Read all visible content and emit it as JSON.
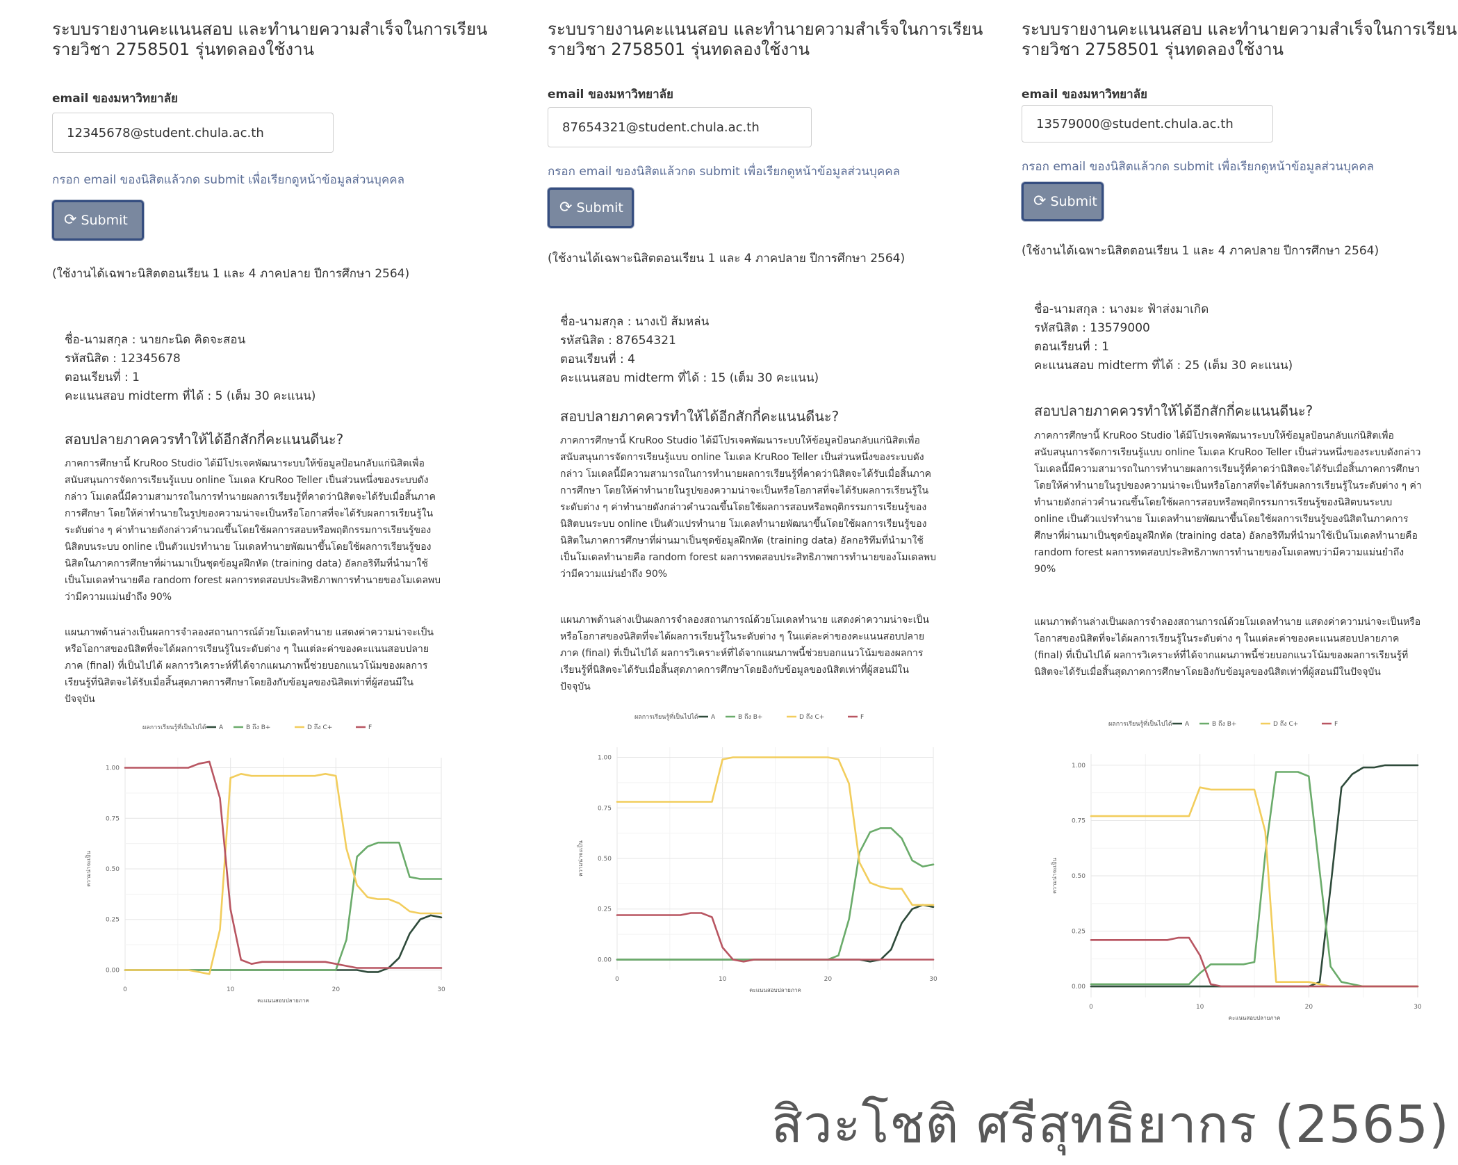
{
  "app_title_line1": "ระบบรายงานคะแนนสอบ และทำนายความสำเร็จในการเรียน",
  "app_title_line2": "รายวิชา 2758501 รุ่นทดลองใช้งาน",
  "email_label": "email ของมหาวิทยาลัย",
  "help_text": "กรอก email ของนิสิตแล้วกด submit เพื่อเรียกดูหน้าข้อมูลส่วนบุคคล",
  "submit_label": "Submit",
  "notice": "(ใช้งานได้เฉพาะนิสิตตอนเรียน 1 และ 4 ภาคปลาย ปีการศึกษา 2564)",
  "section_title": "สอบปลายภาคควรทำให้ได้อีกสักกี่คะแนนดีนะ?",
  "paragraph1": "ภาคการศึกษานี้ KruRoo Studio ได้มีโปรเจคพัฒนาระบบให้ข้อมูลป้อนกลับแก่นิสิตเพื่อสนับสนุนการจัดการเรียนรู้แบบ online โมเดล KruRoo Teller เป็นส่วนหนึ่งของระบบดังกล่าว โมเดลนี้มีความสามารถในการทำนายผลการเรียนรู้ที่คาดว่านิสิตจะได้รับเมื่อสิ้นภาคการศึกษา โดยให้ค่าทำนายในรูปของความน่าจะเป็นหรือโอกาสที่จะได้รับผลการเรียนรู้ในระดับต่าง ๆ ค่าทำนายดังกล่าวคำนวณขึ้นโดยใช้ผลการสอบหรือพฤติกรรมการเรียนรู้ของนิสิตบนระบบ online เป็นตัวแปรทำนาย โมเดลทำนายพัฒนาขึ้นโดยใช้ผลการเรียนรู้ของนิสิตในภาคการศึกษาที่ผ่านมาเป็นชุดข้อมูลฝึกหัด (training data) อัลกอริทึมที่นำมาใช้เป็นโมเดลทำนายคือ random forest ผลการทดสอบประสิทธิภาพการทำนายของโมเดลพบว่ามีความแม่นยำถึง 90%",
  "paragraph2": "แผนภาพด้านล่างเป็นผลการจำลองสถานการณ์ด้วยโมเดลทำนาย แสดงค่าความน่าจะเป็นหรือโอกาสของนิสิตที่จะได้ผลการเรียนรู้ในระดับต่าง ๆ ในแต่ละค่าของคะแนนสอบปลายภาค (final) ที่เป็นไปได้ ผลการวิเคราะห์ที่ได้จากแผนภาพนี้ช่วยบอกแนวโน้มของผลการเรียนรู้ที่นิสิตจะได้รับเมื่อสิ้นสุดภาคการศึกษาโดยอิงกับข้อมูลของนิสิตเท่าที่ผู้สอนมีในปัจจุบัน",
  "labels": {
    "name": "ชื่อ-นามสกุล : ",
    "id": "รหัสนิสิต : ",
    "section": "ตอนเรียนที่ : ",
    "midterm_prefix": "คะแนนสอบ midterm ที่ได้ : ",
    "midterm_suffix": " (เต็ม 30 คะแนน)"
  },
  "panels": [
    {
      "email": "12345678@student.chula.ac.th",
      "name": "นายกะนิด คิดจะสอน",
      "student_id": "12345678",
      "section": "1",
      "midterm": "5"
    },
    {
      "email": "87654321@student.chula.ac.th",
      "name": "นางเป้ ส้มหล่น",
      "student_id": "87654321",
      "section": "4",
      "midterm": "15"
    },
    {
      "email": "13579000@student.chula.ac.th",
      "name": "นางมะ ฟ้าส่งมาเกิด",
      "student_id": "13579000",
      "section": "1",
      "midterm": "25"
    }
  ],
  "icons": {
    "submit": "refresh-icon"
  },
  "colors": {
    "A": "#2e4a3a",
    "B_or_Bplus": "#6aab6a",
    "D_or_Cplus": "#f2cd5c",
    "F": "#b85561",
    "button_bg": "#7a889f",
    "button_border": "#364e80",
    "help_text": "#5b6d96"
  },
  "chart_data": [
    {
      "type": "line",
      "legend_title": "ผลการเรียนรู้ที่เป็นไปได้",
      "legend_position": "top",
      "xlabel": "คะแนนสอบปลายภาค",
      "ylabel": "ความน่าจะเป็น",
      "xlim": [
        0,
        30
      ],
      "ylim": [
        0,
        1
      ],
      "xticks": [
        0,
        10,
        20,
        30
      ],
      "yticks": [
        "0.00",
        "0.25",
        "0.50",
        "0.75",
        "1.00"
      ],
      "x": [
        0,
        1,
        2,
        3,
        4,
        5,
        6,
        7,
        8,
        9,
        10,
        11,
        12,
        13,
        14,
        15,
        16,
        17,
        18,
        19,
        20,
        21,
        22,
        23,
        24,
        25,
        26,
        27,
        28,
        29,
        30
      ],
      "series": [
        {
          "name": "A",
          "color": "#2e4a3a",
          "values": [
            0,
            0,
            0,
            0,
            0,
            0,
            0,
            0,
            0,
            0,
            0,
            0,
            0,
            0,
            0,
            0,
            0,
            0,
            0,
            0,
            0,
            0,
            0,
            -0.01,
            -0.01,
            0.01,
            0.06,
            0.18,
            0.25,
            0.27,
            0.26
          ]
        },
        {
          "name": "B ถึง B+",
          "color": "#6aab6a",
          "values": [
            0,
            0,
            0,
            0,
            0,
            0,
            0,
            0,
            0,
            0,
            0,
            0,
            0,
            0,
            0,
            0,
            0,
            0,
            0,
            0,
            0,
            0.15,
            0.56,
            0.61,
            0.63,
            0.63,
            0.63,
            0.46,
            0.45,
            0.45,
            0.45
          ]
        },
        {
          "name": "D ถึง C+",
          "color": "#f2cd5c",
          "values": [
            0,
            0,
            0,
            0,
            0,
            0,
            0,
            -0.01,
            -0.02,
            0.2,
            0.95,
            0.97,
            0.96,
            0.96,
            0.96,
            0.96,
            0.96,
            0.96,
            0.96,
            0.97,
            0.96,
            0.6,
            0.42,
            0.36,
            0.35,
            0.35,
            0.33,
            0.29,
            0.28,
            0.28,
            0.28
          ]
        },
        {
          "name": "F",
          "color": "#b85561",
          "values": [
            1,
            1,
            1,
            1,
            1,
            1,
            1,
            1.02,
            1.03,
            0.85,
            0.3,
            0.05,
            0.03,
            0.04,
            0.04,
            0.04,
            0.04,
            0.04,
            0.04,
            0.04,
            0.03,
            0.02,
            0.01,
            0.01,
            0.01,
            0.01,
            0.01,
            0.01,
            0.01,
            0.01,
            0.01
          ]
        }
      ]
    },
    {
      "type": "line",
      "legend_title": "ผลการเรียนรู้ที่เป็นไปได้",
      "legend_position": "top",
      "xlabel": "คะแนนสอบปลายภาค",
      "ylabel": "ความน่าจะเป็น",
      "xlim": [
        0,
        30
      ],
      "ylim": [
        0,
        1
      ],
      "xticks": [
        0,
        10,
        20,
        30
      ],
      "yticks": [
        "0.00",
        "0.25",
        "0.50",
        "0.75",
        "1.00"
      ],
      "x": [
        0,
        1,
        2,
        3,
        4,
        5,
        6,
        7,
        8,
        9,
        10,
        11,
        12,
        13,
        14,
        15,
        16,
        17,
        18,
        19,
        20,
        21,
        22,
        23,
        24,
        25,
        26,
        27,
        28,
        29,
        30
      ],
      "series": [
        {
          "name": "A",
          "color": "#2e4a3a",
          "values": [
            0,
            0,
            0,
            0,
            0,
            0,
            0,
            0,
            0,
            0,
            0,
            0,
            0,
            0,
            0,
            0,
            0,
            0,
            0,
            0,
            0,
            0,
            0,
            0,
            -0.01,
            0,
            0.05,
            0.18,
            0.25,
            0.27,
            0.26
          ]
        },
        {
          "name": "B ถึง B+",
          "color": "#6aab6a",
          "values": [
            0,
            0,
            0,
            0,
            0,
            0,
            0,
            0,
            0,
            0,
            0,
            0,
            0,
            0,
            0,
            0,
            0,
            0,
            0,
            0,
            0,
            0.02,
            0.2,
            0.53,
            0.63,
            0.65,
            0.65,
            0.6,
            0.49,
            0.46,
            0.47
          ]
        },
        {
          "name": "D ถึง C+",
          "color": "#f2cd5c",
          "values": [
            0.78,
            0.78,
            0.78,
            0.78,
            0.78,
            0.78,
            0.78,
            0.78,
            0.78,
            0.78,
            0.99,
            1,
            1,
            1,
            1,
            1,
            1,
            1,
            1,
            1,
            1,
            0.99,
            0.87,
            0.48,
            0.38,
            0.36,
            0.35,
            0.35,
            0.27,
            0.27,
            0.27
          ]
        },
        {
          "name": "F",
          "color": "#b85561",
          "values": [
            0.22,
            0.22,
            0.22,
            0.22,
            0.22,
            0.22,
            0.22,
            0.23,
            0.23,
            0.21,
            0.06,
            0,
            -0.01,
            0,
            0,
            0,
            0,
            0,
            0,
            0,
            0,
            0,
            0,
            0,
            0,
            0,
            0,
            0,
            0,
            0,
            0
          ]
        }
      ]
    },
    {
      "type": "line",
      "legend_title": "ผลการเรียนรู้ที่เป็นไปได้",
      "legend_position": "top",
      "xlabel": "คะแนนสอบปลายภาค",
      "ylabel": "ความน่าจะเป็น",
      "xlim": [
        0,
        30
      ],
      "ylim": [
        0,
        1
      ],
      "xticks": [
        0,
        10,
        20,
        30
      ],
      "yticks": [
        "0.00",
        "0.25",
        "0.50",
        "0.75",
        "1.00"
      ],
      "x": [
        0,
        1,
        2,
        3,
        4,
        5,
        6,
        7,
        8,
        9,
        10,
        11,
        12,
        13,
        14,
        15,
        16,
        17,
        18,
        19,
        20,
        21,
        22,
        23,
        24,
        25,
        26,
        27,
        28,
        29,
        30
      ],
      "series": [
        {
          "name": "A",
          "color": "#2e4a3a",
          "values": [
            0,
            0,
            0,
            0,
            0,
            0,
            0,
            0,
            0,
            0,
            0,
            0,
            0,
            0,
            0,
            0,
            0,
            0,
            0,
            0,
            0,
            0.02,
            0.45,
            0.9,
            0.96,
            0.99,
            0.99,
            1,
            1,
            1,
            1
          ]
        },
        {
          "name": "B ถึง B+",
          "color": "#6aab6a",
          "values": [
            0.01,
            0.01,
            0.01,
            0.01,
            0.01,
            0.01,
            0.01,
            0.01,
            0.01,
            0.01,
            0.06,
            0.1,
            0.1,
            0.1,
            0.1,
            0.11,
            0.6,
            0.97,
            0.97,
            0.97,
            0.95,
            0.52,
            0.09,
            0.02,
            0.01,
            0,
            0,
            0,
            0,
            0,
            0
          ]
        },
        {
          "name": "D ถึง C+",
          "color": "#f2cd5c",
          "values": [
            0.77,
            0.77,
            0.77,
            0.77,
            0.77,
            0.77,
            0.77,
            0.77,
            0.77,
            0.77,
            0.9,
            0.89,
            0.89,
            0.89,
            0.89,
            0.89,
            0.7,
            0.02,
            0.02,
            0.02,
            0.02,
            0.01,
            0,
            0,
            0,
            0,
            0,
            0,
            0,
            0,
            0
          ]
        },
        {
          "name": "F",
          "color": "#b85561",
          "values": [
            0.21,
            0.21,
            0.21,
            0.21,
            0.21,
            0.21,
            0.21,
            0.21,
            0.22,
            0.22,
            0.14,
            0.01,
            0,
            0,
            0,
            0,
            0,
            0,
            0,
            0,
            0,
            0,
            0,
            0,
            0,
            0,
            0,
            0,
            0,
            0,
            0
          ]
        }
      ]
    }
  ],
  "watermark": "สิวะโชติ ศรีสุทธิยากร (2565)"
}
